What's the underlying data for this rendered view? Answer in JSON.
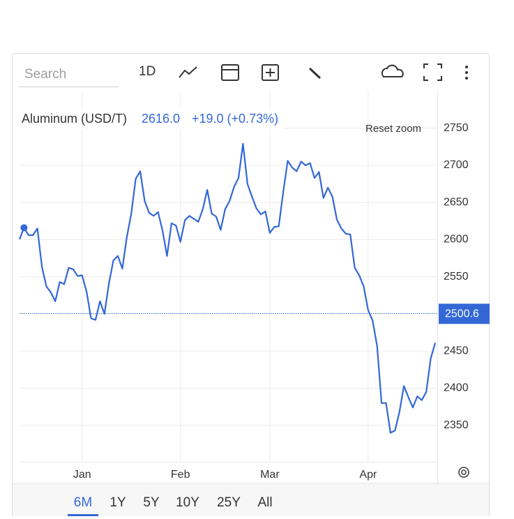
{
  "toolbar": {
    "search_placeholder": "Search",
    "interval": "1D"
  },
  "chart_data": {
    "type": "line",
    "title": "Aluminum (USD/T)",
    "price": "2616.0",
    "change": "+19.0 (+0.73%)",
    "reset_zoom": "Reset zoom",
    "categories": [
      null,
      null,
      null,
      null,
      null,
      null,
      null,
      null,
      null,
      null,
      null,
      null,
      null,
      null,
      "Jan",
      null,
      null,
      null,
      null,
      null,
      null,
      null,
      null,
      null,
      null,
      null,
      null,
      null,
      null,
      null,
      null,
      null,
      null,
      null,
      null,
      null,
      "Feb",
      null,
      null,
      null,
      null,
      null,
      null,
      null,
      null,
      null,
      null,
      null,
      null,
      null,
      null,
      null,
      null,
      null,
      null,
      null,
      "Mar",
      null,
      null,
      null,
      null,
      null,
      null,
      null,
      null,
      null,
      null,
      null,
      null,
      null,
      null,
      null,
      null,
      null,
      null,
      null,
      null,
      null,
      "Apr",
      null,
      null,
      null,
      null,
      null,
      null,
      null,
      null,
      null,
      null,
      null,
      null,
      null,
      null,
      null
    ],
    "values": [
      2600.5,
      2616,
      2606,
      2606,
      2615,
      2564,
      2537,
      2529,
      2517,
      2543,
      2540,
      2562,
      2560,
      2551,
      2552,
      2530,
      2494,
      2492,
      2517,
      2500,
      2541,
      2572,
      2578,
      2561,
      2603,
      2635,
      2682,
      2692,
      2652,
      2636,
      2632,
      2637,
      2612,
      2578,
      2622,
      2619,
      2597,
      2626,
      2632,
      2628,
      2624,
      2641,
      2667,
      2635,
      2631,
      2613,
      2641,
      2652,
      2671,
      2683,
      2729,
      2675,
      2658,
      2642,
      2634,
      2638,
      2609,
      2617,
      2618,
      2664,
      2706,
      2697,
      2692,
      2705,
      2700,
      2703,
      2683,
      2691,
      2656,
      2670,
      2658,
      2627,
      2615,
      2608,
      2607,
      2562,
      2552,
      2537,
      2505,
      2491,
      2457,
      2380,
      2380,
      2340,
      2343,
      2368,
      2403,
      2388,
      2374,
      2389,
      2384,
      2395,
      2440,
      2461
    ],
    "color": "#3367d6",
    "highlight_index": 1,
    "current_value": 2500.6,
    "ylim": [
      2300,
      2800
    ],
    "yticks": [
      2350,
      2400,
      2450,
      2500,
      2550,
      2600,
      2650,
      2700,
      2750
    ],
    "grid": true
  },
  "range_buttons": [
    {
      "label": "6M",
      "active": true
    },
    {
      "label": "1Y",
      "active": false
    },
    {
      "label": "5Y",
      "active": false
    },
    {
      "label": "10Y",
      "active": false
    },
    {
      "label": "25Y",
      "active": false
    },
    {
      "label": "All",
      "active": false
    }
  ]
}
